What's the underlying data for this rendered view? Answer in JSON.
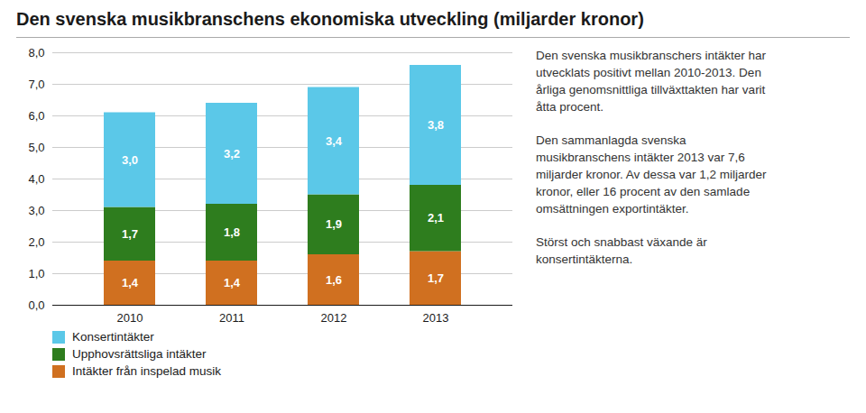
{
  "chart_data": {
    "type": "bar",
    "title": "Den svenska musikbranschens ekonomiska utveckling (miljarder kronor)",
    "categories": [
      "2010",
      "2011",
      "2012",
      "2013"
    ],
    "stacked": true,
    "data_labels": true,
    "grid": true,
    "legend": "lower left",
    "series": [
      {
        "name": "Intäkter från inspelad musik",
        "color": "#d07020",
        "values": [
          1.4,
          1.4,
          1.6,
          1.7
        ],
        "value_labels": [
          "1,4",
          "1,4",
          "1,6",
          "1,7"
        ]
      },
      {
        "name": "Upphovsrättsliga intäkter",
        "color": "#2e7d1e",
        "values": [
          1.7,
          1.8,
          1.9,
          2.1
        ],
        "value_labels": [
          "1,7",
          "1,8",
          "1,9",
          "2,1"
        ]
      },
      {
        "name": "Konsertintäkter",
        "color": "#5bc8e8",
        "values": [
          3.0,
          3.2,
          3.4,
          3.8
        ],
        "value_labels": [
          "3,0",
          "3,2",
          "3,4",
          "3,8"
        ]
      }
    ],
    "ylim": [
      0,
      8.0
    ],
    "yticks": [
      {
        "value": 0.0,
        "label": "0,0"
      },
      {
        "value": 1.0,
        "label": "1,0"
      },
      {
        "value": 2.0,
        "label": "2,0"
      },
      {
        "value": 3.0,
        "label": "3,0"
      },
      {
        "value": 4.0,
        "label": "4,0"
      },
      {
        "value": 5.0,
        "label": "5,0"
      },
      {
        "value": 6.0,
        "label": "6,0"
      },
      {
        "value": 7.0,
        "label": "7,0"
      },
      {
        "value": 8.0,
        "label": "8,0"
      }
    ],
    "annotations": [
      [
        "Den svenska musikbranschers intäkter har",
        "utvecklats positivt mellan 2010-2013. Den",
        "årliga genomsnittliga tillväxttakten har varit",
        "åtta procent."
      ],
      [
        "Den sammanlagda svenska",
        "musikbranschens intäkter 2013 var 7,6",
        "miljarder kronor. Av dessa var 1,2 miljarder",
        "kronor, eller 16 procent av den samlade",
        "omsättningen exportintäkter."
      ],
      [
        "Störst och snabbast växande är",
        "konsertintäkterna."
      ]
    ]
  }
}
